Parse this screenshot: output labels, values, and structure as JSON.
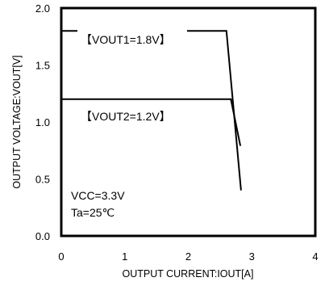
{
  "chart_data": {
    "type": "line",
    "xlabel": "OUTPUT CURRENT:IOUT[A]",
    "ylabel": "OUTPUT VOLTAGE:VOUT[V]",
    "xlim": [
      0,
      4
    ],
    "ylim": [
      0,
      2.0
    ],
    "x_ticks": [
      "0",
      "1",
      "2",
      "3",
      "4"
    ],
    "y_ticks": [
      "0.0",
      "0.5",
      "1.0",
      "1.5",
      "2.0"
    ],
    "grid": false,
    "series": [
      {
        "name": "【VOUT1=1.8V】",
        "x": [
          0,
          2.6,
          2.83
        ],
        "y": [
          1.8,
          1.8,
          0.4
        ]
      },
      {
        "name": "【VOUT2=1.2V】",
        "x": [
          0,
          2.67,
          2.82
        ],
        "y": [
          1.2,
          1.2,
          0.79
        ]
      }
    ],
    "annotations": [
      "VCC=3.3V",
      "Ta=25℃"
    ]
  }
}
